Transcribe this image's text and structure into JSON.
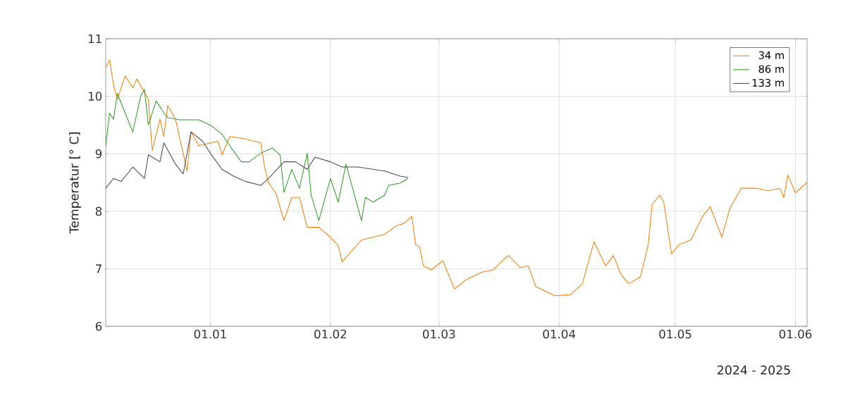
{
  "chart_data": {
    "type": "line",
    "ylabel": "Temperatur [° C]",
    "annotations": [
      "2024 - 2025"
    ],
    "xlim": [
      "2024-12-05",
      "2025-06-04"
    ],
    "ylim": [
      6,
      11
    ],
    "yticks": [
      6,
      7,
      8,
      9,
      10,
      11
    ],
    "xticks": [
      {
        "value": "2025-01-01",
        "label": "01.01"
      },
      {
        "value": "2025-02-01",
        "label": "01.02"
      },
      {
        "value": "2025-03-01",
        "label": "01.03"
      },
      {
        "value": "2025-04-01",
        "label": "01.04"
      },
      {
        "value": "2025-05-01",
        "label": "01.05"
      },
      {
        "value": "2025-06-01",
        "label": "01.06"
      }
    ],
    "grid": true,
    "legend": "top right",
    "marker": "none",
    "line_style": "solid",
    "series": [
      {
        "name": "34 m",
        "color": "#f7800f",
        "x": [
          "2024-12-05",
          "2024-12-06",
          "2024-12-07",
          "2024-12-08",
          "2024-12-10",
          "2024-12-12",
          "2024-12-13",
          "2024-12-16",
          "2024-12-17",
          "2024-12-19",
          "2024-12-20",
          "2024-12-21",
          "2024-12-23",
          "2024-12-26",
          "2024-12-27",
          "2024-12-29",
          "2025-01-01",
          "2025-01-03",
          "2025-01-04",
          "2025-01-06",
          "2025-01-10",
          "2025-01-14",
          "2025-01-15",
          "2025-01-16",
          "2025-01-18",
          "2025-01-20",
          "2025-01-22",
          "2025-01-24",
          "2025-01-26",
          "2025-01-29",
          "2025-02-01",
          "2025-02-03",
          "2025-02-04",
          "2025-02-07",
          "2025-02-09",
          "2025-02-12",
          "2025-02-15",
          "2025-02-18",
          "2025-02-20",
          "2025-02-22",
          "2025-02-23",
          "2025-02-24",
          "2025-02-25",
          "2025-02-27",
          "2025-03-02",
          "2025-03-05",
          "2025-03-08",
          "2025-03-12",
          "2025-03-15",
          "2025-03-18",
          "2025-03-19",
          "2025-03-22",
          "2025-03-24",
          "2025-03-26",
          "2025-03-31",
          "2025-04-04",
          "2025-04-07",
          "2025-04-10",
          "2025-04-13",
          "2025-04-15",
          "2025-04-17",
          "2025-04-19",
          "2025-04-22",
          "2025-04-24",
          "2025-04-25",
          "2025-04-27",
          "2025-04-28",
          "2025-04-30",
          "2025-05-02",
          "2025-05-05",
          "2025-05-08",
          "2025-05-10",
          "2025-05-13",
          "2025-05-15",
          "2025-05-18",
          "2025-05-22",
          "2025-05-25",
          "2025-05-28",
          "2025-05-29",
          "2025-05-30",
          "2025-06-01",
          "2025-06-04"
        ],
        "values": [
          10.5,
          10.63,
          10.2,
          9.95,
          10.35,
          10.15,
          10.3,
          9.95,
          9.06,
          9.6,
          9.3,
          9.84,
          9.6,
          8.7,
          9.38,
          9.14,
          9.19,
          9.22,
          8.98,
          9.3,
          9.26,
          9.19,
          8.77,
          8.5,
          8.3,
          7.84,
          8.24,
          8.24,
          7.72,
          7.72,
          7.55,
          7.4,
          7.12,
          7.35,
          7.5,
          7.55,
          7.6,
          7.75,
          7.79,
          7.91,
          7.42,
          7.38,
          7.05,
          6.98,
          7.14,
          6.65,
          6.81,
          6.94,
          6.98,
          7.18,
          7.23,
          7.02,
          7.05,
          6.69,
          6.53,
          6.55,
          6.74,
          7.47,
          7.05,
          7.23,
          6.9,
          6.74,
          6.86,
          7.42,
          8.12,
          8.28,
          8.16,
          7.26,
          7.42,
          7.5,
          7.91,
          8.08,
          7.55,
          8.04,
          8.4,
          8.4,
          8.36,
          8.4,
          8.24,
          8.63,
          8.32,
          8.5
        ]
      },
      {
        "name": "86 m",
        "color": "#33a02c",
        "x": [
          "2024-12-05",
          "2024-12-06",
          "2024-12-07",
          "2024-12-08",
          "2024-12-10",
          "2024-12-12",
          "2024-12-14",
          "2024-12-15",
          "2024-12-16",
          "2024-12-18",
          "2024-12-20",
          "2024-12-21",
          "2024-12-24",
          "2024-12-29",
          "2025-01-01",
          "2025-01-04",
          "2025-01-06",
          "2025-01-09",
          "2025-01-11",
          "2025-01-14",
          "2025-01-17",
          "2025-01-19",
          "2025-01-20",
          "2025-01-22",
          "2025-01-24",
          "2025-01-26",
          "2025-01-27",
          "2025-01-29",
          "2025-02-01",
          "2025-02-03",
          "2025-02-05",
          "2025-02-07",
          "2025-02-09",
          "2025-02-10",
          "2025-02-12",
          "2025-02-15",
          "2025-02-16",
          "2025-02-19",
          "2025-02-21"
        ],
        "values": [
          9.14,
          9.71,
          9.6,
          10.05,
          9.71,
          9.38,
          10.0,
          10.12,
          9.5,
          9.92,
          9.71,
          9.63,
          9.59,
          9.59,
          9.5,
          9.34,
          9.14,
          8.86,
          8.86,
          9.01,
          9.1,
          8.98,
          8.33,
          8.73,
          8.4,
          9.01,
          8.28,
          7.84,
          8.57,
          8.16,
          8.82,
          8.33,
          7.84,
          8.24,
          8.16,
          8.28,
          8.45,
          8.49,
          8.57
        ]
      },
      {
        "name": "133 m",
        "color": "#4d4d52",
        "x": [
          "2024-12-05",
          "2024-12-07",
          "2024-12-09",
          "2024-12-12",
          "2024-12-15",
          "2024-12-16",
          "2024-12-19",
          "2024-12-20",
          "2024-12-23",
          "2024-12-25",
          "2024-12-27",
          "2024-12-30",
          "2025-01-01",
          "2025-01-04",
          "2025-01-07",
          "2025-01-10",
          "2025-01-14",
          "2025-01-16",
          "2025-01-20",
          "2025-01-23",
          "2025-01-26",
          "2025-01-28",
          "2025-02-01",
          "2025-02-04",
          "2025-02-08",
          "2025-02-12",
          "2025-02-15",
          "2025-02-19",
          "2025-02-21"
        ],
        "values": [
          8.4,
          8.57,
          8.52,
          8.77,
          8.57,
          8.98,
          8.86,
          9.19,
          8.82,
          8.65,
          9.38,
          9.22,
          9.01,
          8.73,
          8.61,
          8.52,
          8.45,
          8.57,
          8.86,
          8.86,
          8.73,
          8.94,
          8.86,
          8.77,
          8.77,
          8.73,
          8.7,
          8.61,
          8.59
        ]
      }
    ]
  }
}
